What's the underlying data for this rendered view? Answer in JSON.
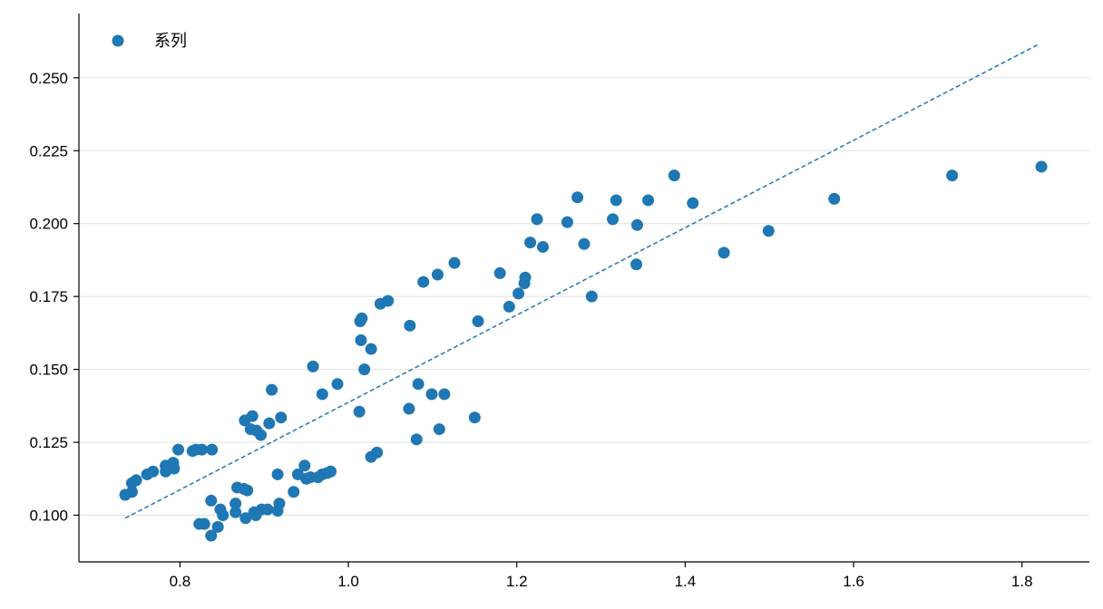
{
  "chart_data": {
    "type": "scatter",
    "title": "",
    "xlabel": "",
    "ylabel": "",
    "xlim": [
      0.68,
      1.88
    ],
    "ylim": [
      0.084,
      0.272
    ],
    "x_ticks": [
      0.8,
      1.0,
      1.2,
      1.4,
      1.6,
      1.8
    ],
    "x_tick_labels": [
      "0.8",
      "1.0",
      "1.2",
      "1.4",
      "1.6",
      "1.8"
    ],
    "y_ticks": [
      0.1,
      0.125,
      0.15,
      0.175,
      0.2,
      0.225,
      0.25
    ],
    "y_tick_labels": [
      "0.100",
      "0.125",
      "0.150",
      "0.175",
      "0.200",
      "0.225",
      "0.250"
    ],
    "grid": "horizontal",
    "legend_position": "top-left",
    "colors": {
      "series": "#1f77b4",
      "grid": "#e0e0e0",
      "axis": "#000000"
    },
    "series": [
      {
        "name": "系列",
        "points": [
          [
            0.735,
            0.107
          ],
          [
            0.743,
            0.108
          ],
          [
            0.743,
            0.111
          ],
          [
            0.748,
            0.112
          ],
          [
            0.761,
            0.114
          ],
          [
            0.768,
            0.115
          ],
          [
            0.783,
            0.117
          ],
          [
            0.783,
            0.115
          ],
          [
            0.792,
            0.118
          ],
          [
            0.793,
            0.116
          ],
          [
            0.798,
            0.1225
          ],
          [
            0.815,
            0.122
          ],
          [
            0.819,
            0.1225
          ],
          [
            0.826,
            0.1225
          ],
          [
            0.838,
            0.1225
          ],
          [
            0.823,
            0.097
          ],
          [
            0.829,
            0.097
          ],
          [
            0.837,
            0.093
          ],
          [
            0.845,
            0.096
          ],
          [
            0.837,
            0.105
          ],
          [
            0.848,
            0.102
          ],
          [
            0.851,
            0.1
          ],
          [
            0.866,
            0.101
          ],
          [
            0.866,
            0.104
          ],
          [
            0.868,
            0.1095
          ],
          [
            0.876,
            0.109
          ],
          [
            0.88,
            0.1085
          ],
          [
            0.878,
            0.099
          ],
          [
            0.888,
            0.101
          ],
          [
            0.89,
            0.1
          ],
          [
            0.897,
            0.102
          ],
          [
            0.904,
            0.102
          ],
          [
            0.916,
            0.1015
          ],
          [
            0.918,
            0.104
          ],
          [
            0.916,
            0.114
          ],
          [
            0.877,
            0.1325
          ],
          [
            0.886,
            0.134
          ],
          [
            0.884,
            0.1295
          ],
          [
            0.891,
            0.129
          ],
          [
            0.896,
            0.1275
          ],
          [
            0.906,
            0.1315
          ],
          [
            0.909,
            0.143
          ],
          [
            0.92,
            0.1335
          ],
          [
            0.935,
            0.108
          ],
          [
            0.94,
            0.114
          ],
          [
            0.948,
            0.117
          ],
          [
            0.95,
            0.1125
          ],
          [
            0.955,
            0.113
          ],
          [
            0.964,
            0.113
          ],
          [
            0.969,
            0.114
          ],
          [
            0.975,
            0.1145
          ],
          [
            0.979,
            0.115
          ],
          [
            0.958,
            0.151
          ],
          [
            0.969,
            0.1415
          ],
          [
            0.987,
            0.145
          ],
          [
            1.013,
            0.1355
          ],
          [
            1.015,
            0.16
          ],
          [
            1.019,
            0.15
          ],
          [
            1.027,
            0.157
          ],
          [
            1.014,
            0.1665
          ],
          [
            1.016,
            0.1675
          ],
          [
            1.038,
            0.1725
          ],
          [
            1.047,
            0.1735
          ],
          [
            1.027,
            0.12
          ],
          [
            1.034,
            0.1215
          ],
          [
            1.072,
            0.1365
          ],
          [
            1.073,
            0.165
          ],
          [
            1.081,
            0.126
          ],
          [
            1.083,
            0.145
          ],
          [
            1.089,
            0.18
          ],
          [
            1.099,
            0.1415
          ],
          [
            1.106,
            0.1825
          ],
          [
            1.108,
            0.1295
          ],
          [
            1.114,
            0.1415
          ],
          [
            1.126,
            0.1865
          ],
          [
            1.15,
            0.1335
          ],
          [
            1.154,
            0.1665
          ],
          [
            1.18,
            0.183
          ],
          [
            1.191,
            0.1715
          ],
          [
            1.202,
            0.176
          ],
          [
            1.209,
            0.1795
          ],
          [
            1.21,
            0.1815
          ],
          [
            1.216,
            0.1935
          ],
          [
            1.224,
            0.2015
          ],
          [
            1.231,
            0.192
          ],
          [
            1.26,
            0.2005
          ],
          [
            1.272,
            0.209
          ],
          [
            1.28,
            0.193
          ],
          [
            1.289,
            0.175
          ],
          [
            1.314,
            0.2015
          ],
          [
            1.318,
            0.208
          ],
          [
            1.342,
            0.186
          ],
          [
            1.343,
            0.1995
          ],
          [
            1.356,
            0.208
          ],
          [
            1.387,
            0.2165
          ],
          [
            1.409,
            0.207
          ],
          [
            1.446,
            0.19
          ],
          [
            1.499,
            0.1975
          ],
          [
            1.577,
            0.2085
          ],
          [
            1.717,
            0.2165
          ],
          [
            1.823,
            0.2195
          ]
        ]
      }
    ],
    "trend_line": {
      "style": "dashed",
      "x": [
        0.735,
        1.82
      ],
      "y": [
        0.099,
        0.2615
      ]
    },
    "legend": {
      "label": "系列"
    }
  }
}
